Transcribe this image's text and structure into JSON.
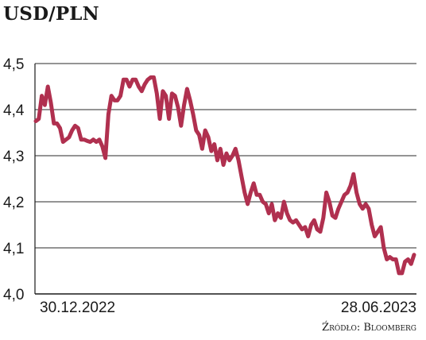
{
  "chart_data": {
    "type": "line",
    "title": "USD/PLN",
    "source": "Źródło: Bloomberg",
    "xlabel": "",
    "ylabel": "",
    "ylim": [
      4.0,
      4.5
    ],
    "yticks": [
      4.0,
      4.1,
      4.2,
      4.3,
      4.4,
      4.5
    ],
    "ytick_labels": [
      "4,0",
      "4,1",
      "4,2",
      "4,3",
      "4,4",
      "4,5"
    ],
    "x_start": "30.12.2022",
    "x_end": "28.06.2023",
    "grid": true,
    "line_color": "#b0304f",
    "series": [
      {
        "values": [
          4.375,
          4.38,
          4.43,
          4.41,
          4.45,
          4.415,
          4.37,
          4.37,
          4.36,
          4.33,
          4.335,
          4.34,
          4.355,
          4.365,
          4.36,
          4.335,
          4.335,
          4.332,
          4.33,
          4.335,
          4.33,
          4.335,
          4.32,
          4.295,
          4.39,
          4.43,
          4.42,
          4.42,
          4.43,
          4.465,
          4.465,
          4.45,
          4.465,
          4.465,
          4.45,
          4.44,
          4.455,
          4.465,
          4.47,
          4.47,
          4.435,
          4.38,
          4.44,
          4.43,
          4.38,
          4.435,
          4.43,
          4.405,
          4.365,
          4.41,
          4.445,
          4.42,
          4.39,
          4.355,
          4.345,
          4.315,
          4.355,
          4.34,
          4.31,
          4.325,
          4.29,
          4.315,
          4.28,
          4.305,
          4.29,
          4.3,
          4.315,
          4.29,
          4.255,
          4.22,
          4.195,
          4.22,
          4.24,
          4.215,
          4.215,
          4.2,
          4.195,
          4.175,
          4.195,
          4.16,
          4.175,
          4.165,
          4.2,
          4.175,
          4.16,
          4.155,
          4.16,
          4.15,
          4.14,
          4.145,
          4.125,
          4.15,
          4.16,
          4.14,
          4.135,
          4.165,
          4.22,
          4.2,
          4.17,
          4.165,
          4.185,
          4.2,
          4.215,
          4.22,
          4.235,
          4.26,
          4.22,
          4.195,
          4.185,
          4.195,
          4.185,
          4.15,
          4.125,
          4.135,
          4.145,
          4.1,
          4.075,
          4.08,
          4.075,
          4.075,
          4.045,
          4.045,
          4.07,
          4.075,
          4.065,
          4.085
        ]
      }
    ]
  }
}
